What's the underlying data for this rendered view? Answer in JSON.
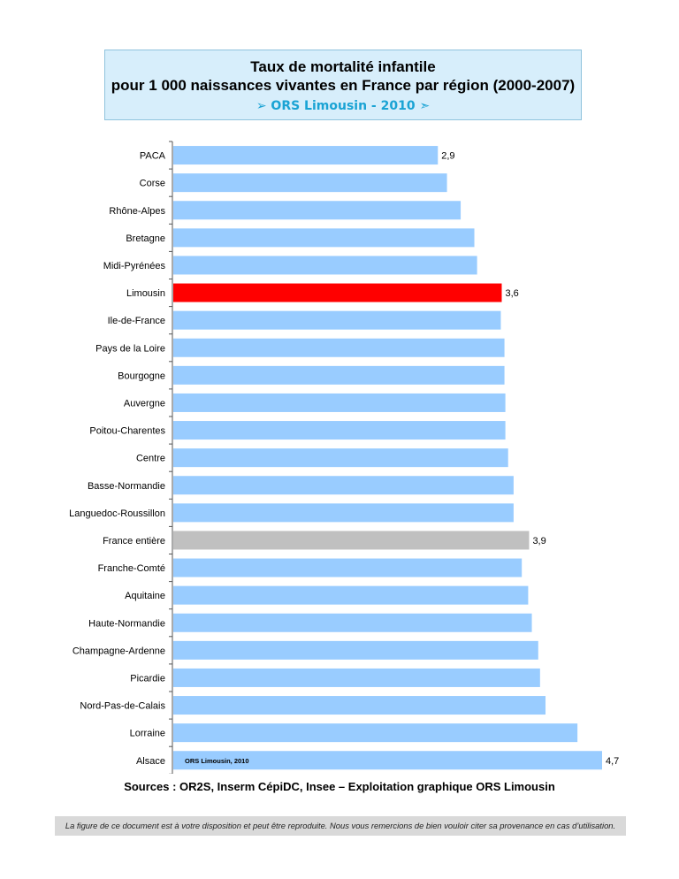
{
  "title": {
    "line1": "Taux de mortalité infantile",
    "line2": "pour 1 000 naissances vivantes en France par région (2000-2007)",
    "subtitle": "➢ ORS Limousin - 2010 ➣"
  },
  "chart_data": {
    "type": "bar",
    "orientation": "horizontal",
    "categories": [
      "PACA",
      "Corse",
      "Rhône-Alpes",
      "Bretagne",
      "Midi-Pyrénées",
      "Limousin",
      "Ile-de-France",
      "Pays de la Loire",
      "Bourgogne",
      "Auvergne",
      "Poitou-Charentes",
      "Centre",
      "Basse-Normandie",
      "Languedoc-Roussillon",
      "France entière",
      "Franche-Comté",
      "Aquitaine",
      "Haute-Normandie",
      "Champagne-Ardenne",
      "Picardie",
      "Nord-Pas-de-Calais",
      "Lorraine",
      "Alsace"
    ],
    "values": [
      2.9,
      3.0,
      3.15,
      3.3,
      3.33,
      3.6,
      3.59,
      3.63,
      3.63,
      3.64,
      3.64,
      3.67,
      3.73,
      3.73,
      3.9,
      3.82,
      3.89,
      3.93,
      4.0,
      4.02,
      4.08,
      4.43,
      4.7
    ],
    "value_labels": {
      "PACA": "2,9",
      "Limousin": "3,6",
      "France entière": "3,9",
      "Alsace": "4,7"
    },
    "highlight_colors": {
      "Limousin": "#ff0000",
      "France entière": "#c0c0c0"
    },
    "bar_color": "#99ccff",
    "annotation": "ORS Limousin, 2010",
    "xlim": [
      0,
      4.7
    ],
    "grid": false,
    "legend": "none"
  },
  "sources": "Sources : OR2S, Inserm CépiDC, Insee – Exploitation graphique ORS Limousin",
  "footer": "La figure de ce document est à votre disposition et peut être reproduite. Nous vous remercions de bien vouloir citer sa provenance en cas d’utilisation."
}
